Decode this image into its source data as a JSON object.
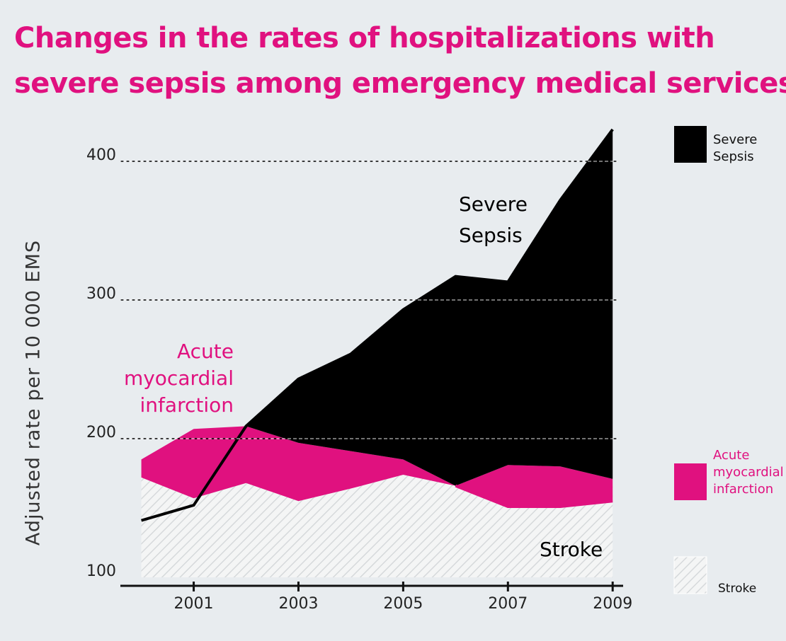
{
  "title_line1": "Changes in the rates of hospitalizations with",
  "title_line2": "severe sepsis among emergency medical services",
  "colors": {
    "accent": "#e0117f",
    "sepsis": "#000000",
    "stroke_fill": "#f4f5f5",
    "stroke_hatch": "#d6d9db",
    "background": "#e8ecef"
  },
  "chart_data": {
    "type": "area",
    "title": "Changes in the rates of hospitalizations with severe sepsis among emergency medical services",
    "xlabel": "",
    "ylabel": "Adjusted rate per 10 000 EMS",
    "x": [
      2000,
      2001,
      2002,
      2003,
      2004,
      2005,
      2006,
      2007,
      2008,
      2009
    ],
    "xlim": [
      1999.6,
      2009.2
    ],
    "ylim": [
      100,
      425
    ],
    "yticks": [
      100,
      200,
      300,
      400
    ],
    "xtick_labels": [
      "2001",
      "2003",
      "2005",
      "2007",
      "2009"
    ],
    "xtick_values": [
      2001,
      2003,
      2005,
      2007,
      2009
    ],
    "grid": "horizontal dashed",
    "series": [
      {
        "name": "Stroke",
        "style": "hatched",
        "values": [
          172,
          157,
          168,
          155,
          164,
          174,
          166,
          181,
          180,
          171
        ]
      },
      {
        "name": "Acute myocardial infarction",
        "values": [
          185,
          207,
          209,
          197,
          191,
          185,
          166,
          151,
          151,
          155
        ]
      },
      {
        "name": "Severe Sepsis",
        "values": [
          141,
          152,
          209,
          243,
          261,
          293,
          317,
          313,
          372,
          423
        ]
      }
    ],
    "annotations": {
      "sepsis": [
        "Severe",
        "Sepsis"
      ],
      "ami": [
        "Acute",
        "myocardial",
        "infarction"
      ],
      "stroke": "Stroke"
    },
    "legend": {
      "position": "right",
      "items": [
        {
          "lines": [
            "Severe",
            "Sepsis"
          ],
          "style": "black"
        },
        {
          "lines": [
            "Acute",
            "myocardial",
            "infarction"
          ],
          "style": "magenta"
        },
        {
          "lines": [
            "Stroke"
          ],
          "style": "hatched"
        }
      ]
    }
  }
}
